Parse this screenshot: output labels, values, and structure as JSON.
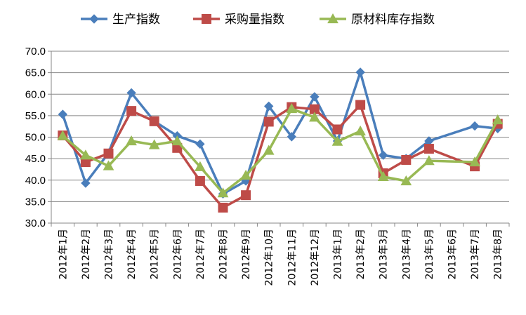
{
  "chart_data": {
    "type": "line",
    "title": "",
    "xlabel": "",
    "ylabel": "",
    "ylim": [
      30,
      70
    ],
    "yticks": [
      "30.0",
      "35.0",
      "40.0",
      "45.0",
      "50.0",
      "55.0",
      "60.0",
      "65.0",
      "70.0"
    ],
    "grid": true,
    "legend_position": "top",
    "categories": [
      "2012年1月",
      "2012年2月",
      "2012年3月",
      "2012年4月",
      "2012年5月",
      "2012年6月",
      "2012年7月",
      "2012年8月",
      "2012年9月",
      "2012年10月",
      "2012年11月",
      "2012年12月",
      "2013年1月",
      "2013年2月",
      "2013年3月",
      "2013年4月",
      "2013年5月",
      "2013年6月",
      "2013年7月",
      "2013年8月"
    ],
    "series": [
      {
        "name": "生产指数",
        "color": "#4a7ebb",
        "marker": "diamond",
        "values": [
          55.3,
          39.3,
          46.3,
          60.3,
          53.7,
          50.3,
          48.4,
          36.8,
          39.8,
          57.2,
          50.1,
          59.4,
          49.1,
          65.1,
          45.8,
          45.0,
          49.1,
          null,
          52.6,
          52.0
        ]
      },
      {
        "name": "采购量指数",
        "color": "#be4b48",
        "marker": "square",
        "values": [
          50.4,
          44.2,
          46.2,
          56.1,
          53.7,
          47.5,
          39.8,
          33.6,
          36.5,
          53.6,
          57.0,
          56.5,
          51.8,
          57.5,
          41.6,
          44.7,
          47.3,
          null,
          43.2,
          53.1
        ]
      },
      {
        "name": "原材料库存指数",
        "color": "#98b954",
        "marker": "triangle",
        "values": [
          50.3,
          45.8,
          43.3,
          49.1,
          48.2,
          49.1,
          43.1,
          37.0,
          41.1,
          46.9,
          56.6,
          54.6,
          49.0,
          51.4,
          40.8,
          39.8,
          44.5,
          null,
          44.2,
          54.0
        ]
      }
    ]
  }
}
